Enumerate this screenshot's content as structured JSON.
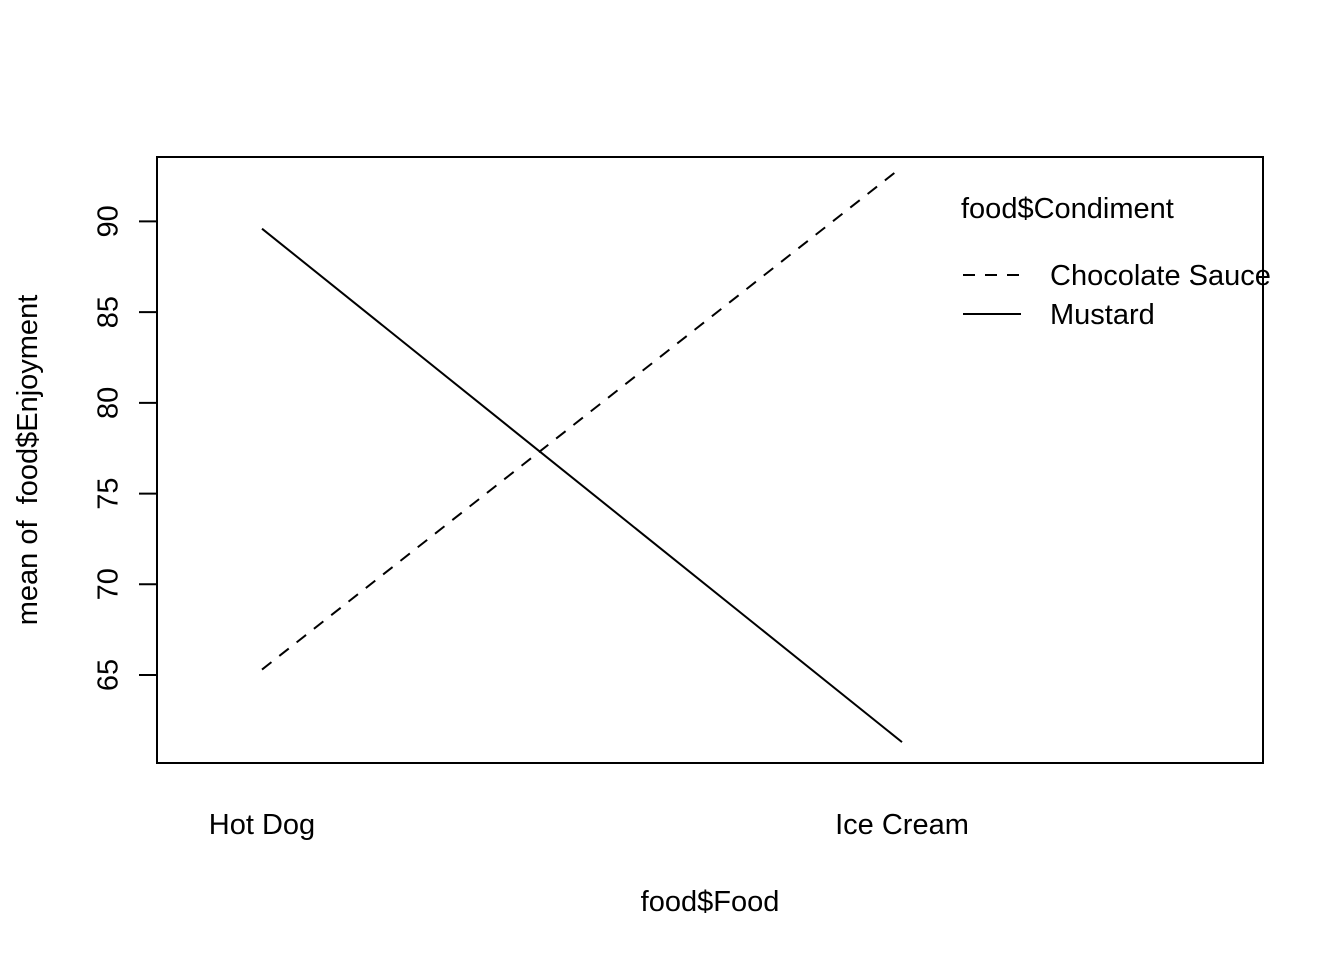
{
  "chart_data": {
    "type": "line",
    "title": "",
    "xlabel": "food$Food",
    "ylabel": "mean of  food$Enjoyment",
    "categories": [
      "Hot Dog",
      "Ice Cream"
    ],
    "yticks": [
      65,
      70,
      75,
      80,
      85,
      90
    ],
    "ylim": [
      60.15,
      93.55
    ],
    "series": [
      {
        "name": "Chocolate Sauce",
        "values": [
          65.3,
          93.0
        ],
        "line_style": "dashed",
        "color": "#000000"
      },
      {
        "name": "Mustard",
        "values": [
          89.6,
          61.3
        ],
        "line_style": "solid",
        "color": "#000000"
      }
    ],
    "legend": {
      "title": "food$Condiment",
      "placement": "top-right",
      "entries": [
        "Chocolate Sauce",
        "Mustard"
      ]
    },
    "grid": false,
    "box": true
  }
}
